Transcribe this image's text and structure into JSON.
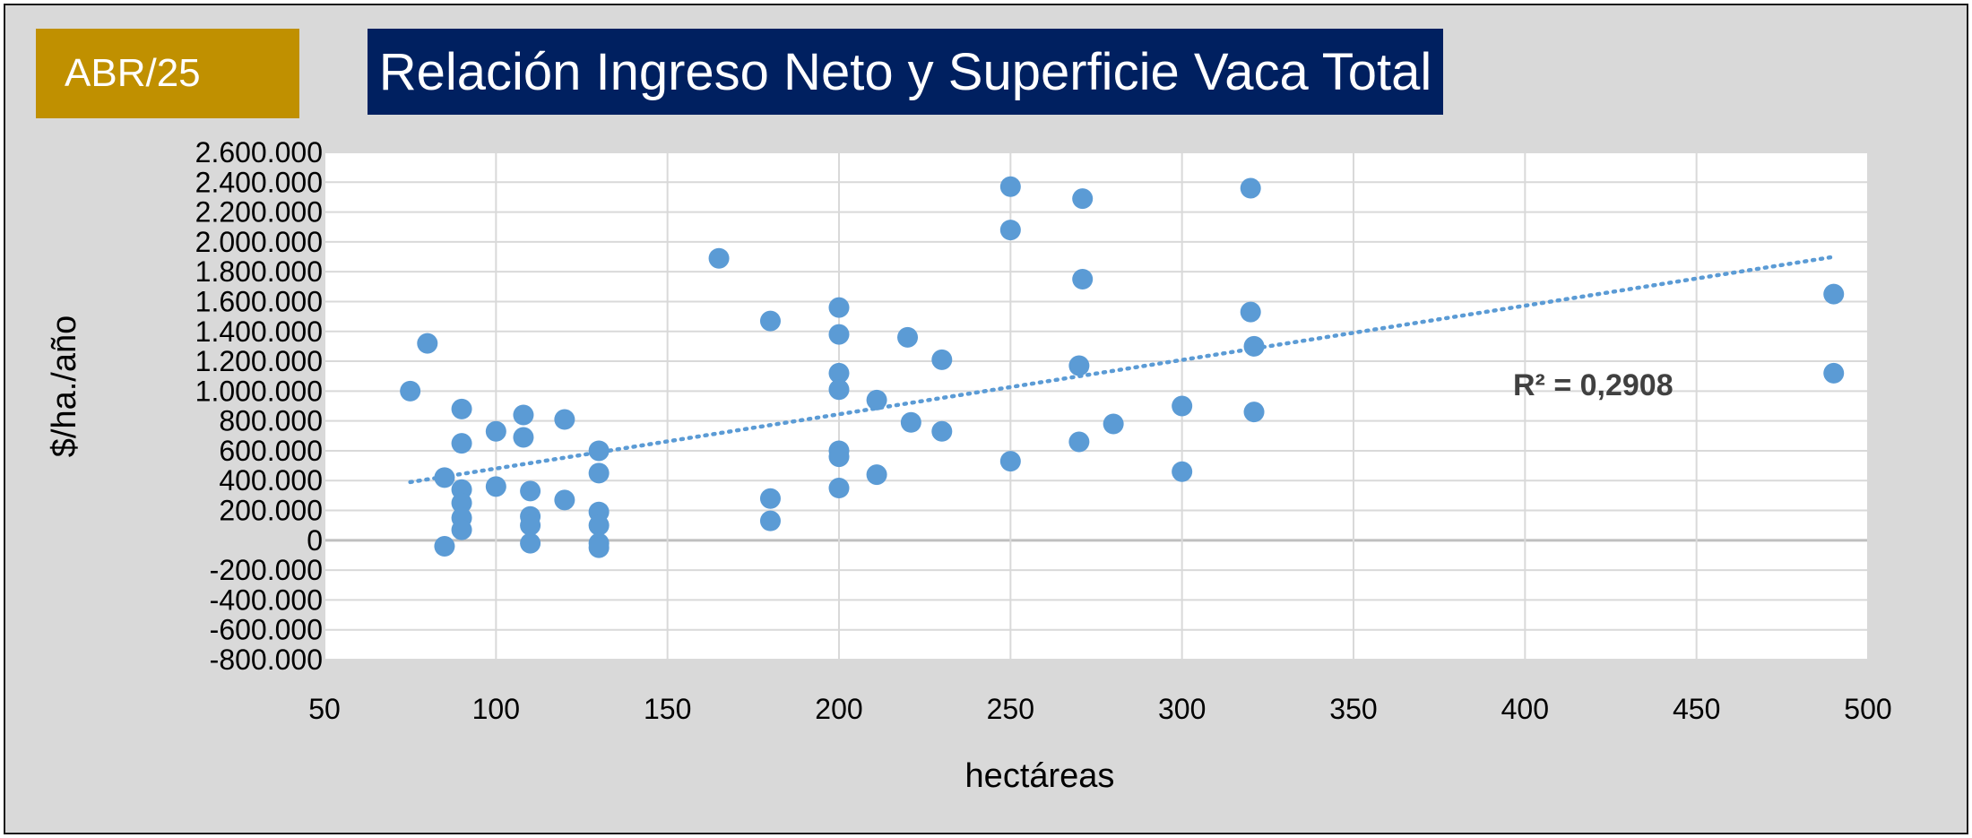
{
  "badge": "ABR/25",
  "chart_data": {
    "type": "scatter",
    "title": "Relación Ingreso Neto y Superficie Vaca Total",
    "xlabel": "hectáreas",
    "ylabel": "$/ha./año",
    "xlim": [
      50,
      500
    ],
    "ylim": [
      -800000,
      2600000
    ],
    "x_ticks": [
      50,
      100,
      150,
      200,
      250,
      300,
      350,
      400,
      450,
      500
    ],
    "x_tick_labels": [
      "50",
      "100",
      "150",
      "200",
      "250",
      "300",
      "350",
      "400",
      "450",
      "500"
    ],
    "y_ticks": [
      2600000,
      2400000,
      2200000,
      2000000,
      1800000,
      1600000,
      1400000,
      1200000,
      1000000,
      800000,
      600000,
      400000,
      200000,
      0,
      -200000,
      -400000,
      -600000,
      -800000
    ],
    "y_tick_labels": [
      "2.600.000",
      "2.400.000",
      "2.200.000",
      "2.000.000",
      "1.800.000",
      "1.600.000",
      "1.400.000",
      "1.200.000",
      "1.000.000",
      "800.000",
      "600.000",
      "400.000",
      "200.000",
      "0",
      "-200.000",
      "-400.000",
      "-600.000",
      "-800.000"
    ],
    "grid": true,
    "colors": {
      "points": "#5b9bd5",
      "trendline": "#5b9bd5",
      "zero_line": "#bfbfbf",
      "grid": "#d9d9d9"
    },
    "points": [
      [
        75,
        1000000
      ],
      [
        80,
        1320000
      ],
      [
        85,
        420000
      ],
      [
        85,
        -40000
      ],
      [
        90,
        880000
      ],
      [
        90,
        650000
      ],
      [
        90,
        340000
      ],
      [
        90,
        250000
      ],
      [
        90,
        150000
      ],
      [
        90,
        70000
      ],
      [
        100,
        730000
      ],
      [
        100,
        360000
      ],
      [
        108,
        840000
      ],
      [
        108,
        690000
      ],
      [
        110,
        330000
      ],
      [
        110,
        160000
      ],
      [
        110,
        100000
      ],
      [
        110,
        -20000
      ],
      [
        120,
        810000
      ],
      [
        120,
        270000
      ],
      [
        130,
        600000
      ],
      [
        130,
        450000
      ],
      [
        130,
        190000
      ],
      [
        130,
        100000
      ],
      [
        130,
        -20000
      ],
      [
        130,
        -50000
      ],
      [
        165,
        1890000
      ],
      [
        180,
        1470000
      ],
      [
        180,
        280000
      ],
      [
        180,
        130000
      ],
      [
        200,
        1560000
      ],
      [
        200,
        1380000
      ],
      [
        200,
        1120000
      ],
      [
        200,
        1010000
      ],
      [
        200,
        600000
      ],
      [
        200,
        560000
      ],
      [
        200,
        350000
      ],
      [
        211,
        940000
      ],
      [
        211,
        440000
      ],
      [
        220,
        1360000
      ],
      [
        221,
        790000
      ],
      [
        230,
        1210000
      ],
      [
        230,
        730000
      ],
      [
        250,
        2370000
      ],
      [
        250,
        2080000
      ],
      [
        250,
        530000
      ],
      [
        270,
        1170000
      ],
      [
        270,
        660000
      ],
      [
        271,
        2290000
      ],
      [
        271,
        1750000
      ],
      [
        280,
        780000
      ],
      [
        300,
        900000
      ],
      [
        300,
        460000
      ],
      [
        320,
        2360000
      ],
      [
        320,
        1530000
      ],
      [
        321,
        1300000
      ],
      [
        321,
        860000
      ],
      [
        490,
        1650000
      ],
      [
        490,
        1120000
      ]
    ],
    "trendline": {
      "type": "linear",
      "x_range": [
        75,
        490
      ],
      "y_start": 390000,
      "y_end": 1900000
    },
    "annotations": [
      {
        "text": "R² = 0,2908"
      }
    ]
  }
}
